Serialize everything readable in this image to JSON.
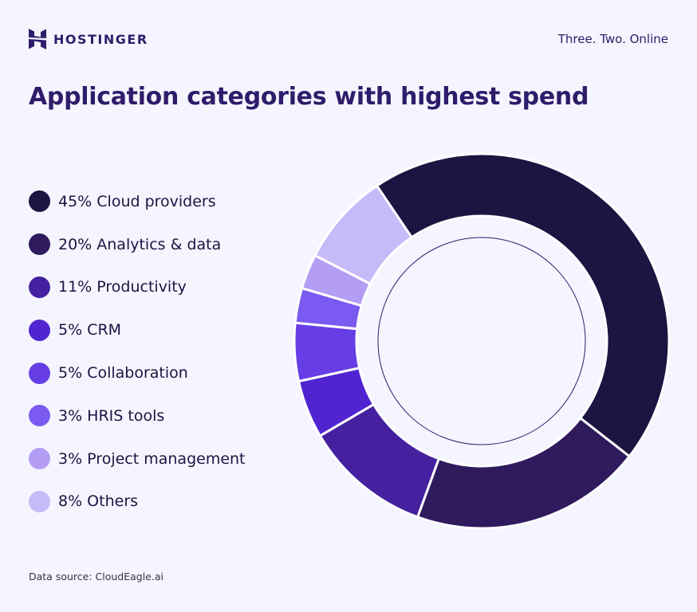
{
  "header": {
    "brand": "HOSTINGER",
    "tagline": "Three. Two. Online"
  },
  "title": "Application categories with highest spend",
  "source": "Data source: CloudEagle.ai",
  "chart_data": {
    "type": "pie",
    "subtype": "donut",
    "title": "Application categories with highest spend",
    "legend_position": "left",
    "categories": [
      "Cloud providers",
      "Analytics & data",
      "Productivity",
      "CRM",
      "Collaboration",
      "HRIS tools",
      "Project management",
      "Others"
    ],
    "values": [
      45,
      20,
      11,
      5,
      5,
      3,
      3,
      8
    ],
    "unit": "%",
    "labels": [
      "45% Cloud providers",
      "20% Analytics & data",
      "11% Productivity",
      "5% CRM",
      "5% Collaboration",
      "3% HRIS tools",
      "3% Project management",
      "8% Others"
    ],
    "colors": [
      "#1d1442",
      "#2f1a5e",
      "#4521a0",
      "#5025d1",
      "#673de6",
      "#7a5af0",
      "#b39ef3",
      "#c6baf8"
    ]
  }
}
